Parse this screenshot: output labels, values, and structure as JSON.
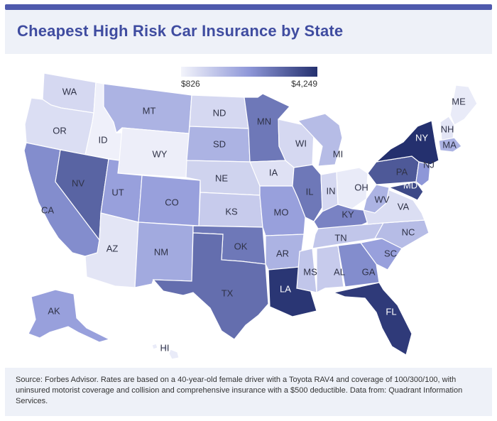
{
  "header": {
    "title": "Cheapest High Risk Car Insurance by State"
  },
  "legend": {
    "min_label": "$826",
    "max_label": "$4,249",
    "min_color": "#f3f4fb",
    "max_color": "#24306e"
  },
  "states": [
    {
      "code": "WA",
      "level": 0.15
    },
    {
      "code": "OR",
      "level": 0.12
    },
    {
      "code": "ID",
      "level": 0.02
    },
    {
      "code": "MT",
      "level": 0.35
    },
    {
      "code": "WY",
      "level": 0.03
    },
    {
      "code": "CA",
      "level": 0.55
    },
    {
      "code": "NV",
      "level": 0.75
    },
    {
      "code": "UT",
      "level": 0.45
    },
    {
      "code": "AZ",
      "level": 0.08
    },
    {
      "code": "CO",
      "level": 0.45
    },
    {
      "code": "NM",
      "level": 0.4
    },
    {
      "code": "ND",
      "level": 0.15
    },
    {
      "code": "SD",
      "level": 0.35
    },
    {
      "code": "NE",
      "level": 0.18
    },
    {
      "code": "KS",
      "level": 0.22
    },
    {
      "code": "OK",
      "level": 0.65
    },
    {
      "code": "TX",
      "level": 0.7
    },
    {
      "code": "MN",
      "level": 0.65
    },
    {
      "code": "IA",
      "level": 0.1
    },
    {
      "code": "MO",
      "level": 0.45
    },
    {
      "code": "AR",
      "level": 0.35
    },
    {
      "code": "LA",
      "level": 0.97
    },
    {
      "code": "WI",
      "level": 0.15
    },
    {
      "code": "IL",
      "level": 0.65
    },
    {
      "code": "MI",
      "level": 0.3
    },
    {
      "code": "IN",
      "level": 0.15
    },
    {
      "code": "OH",
      "level": 0.05
    },
    {
      "code": "KY",
      "level": 0.6
    },
    {
      "code": "TN",
      "level": 0.25
    },
    {
      "code": "MS",
      "level": 0.25
    },
    {
      "code": "AL",
      "level": 0.22
    },
    {
      "code": "GA",
      "level": 0.55
    },
    {
      "code": "FL",
      "level": 0.95
    },
    {
      "code": "SC",
      "level": 0.45
    },
    {
      "code": "NC",
      "level": 0.3
    },
    {
      "code": "VA",
      "level": 0.12
    },
    {
      "code": "WV",
      "level": 0.35
    },
    {
      "code": "PA",
      "level": 0.8
    },
    {
      "code": "NY",
      "level": 1.0
    },
    {
      "code": "MD",
      "level": 0.88
    },
    {
      "code": "NJ",
      "level": 0.5
    },
    {
      "code": "ME",
      "level": 0.05
    },
    {
      "code": "NH",
      "level": 0.08
    },
    {
      "code": "MA",
      "level": 0.35
    },
    {
      "code": "AK",
      "level": 0.45
    },
    {
      "code": "HI",
      "level": 0.05
    }
  ],
  "footer": {
    "source": "Source: Forbes Advisor. Rates are based on a 40-year-old female driver with a Toyota RAV4 and coverage of 100/300/100, with uninsured motorist coverage and collision and comprehensive insurance with a $500 deductible. Data from: Quadrant Information Services."
  }
}
